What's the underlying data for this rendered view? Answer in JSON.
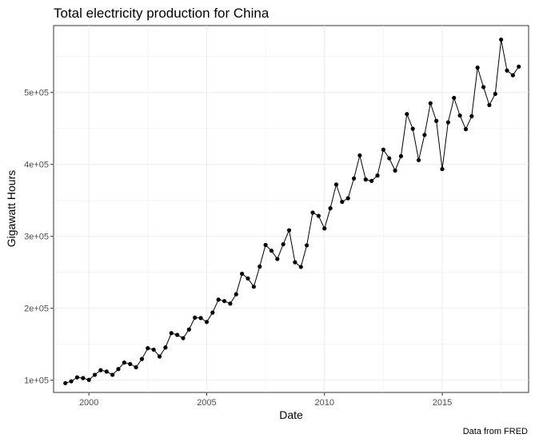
{
  "chart_data": {
    "type": "line",
    "title": "Total electricity production for China",
    "xlabel": "Date",
    "ylabel": "Gigawatt Hours",
    "caption": "Data from FRED",
    "x_ticks": [
      "2000",
      "2005",
      "2010",
      "2015"
    ],
    "y_ticks": [
      "1e+05",
      "2e+05",
      "3e+05",
      "4e+05",
      "5e+05"
    ],
    "xlim": [
      "1998-07",
      "2018-09"
    ],
    "ylim": [
      83000,
      593000
    ],
    "grid": true,
    "line_color": "#000000",
    "series": [
      {
        "x": [
          "1999-01",
          "1999-04",
          "1999-07",
          "1999-10",
          "2000-01",
          "2000-04",
          "2000-07",
          "2000-10",
          "2001-01",
          "2001-04",
          "2001-07",
          "2001-10",
          "2002-01",
          "2002-04",
          "2002-07",
          "2002-10",
          "2003-01",
          "2003-04",
          "2003-07",
          "2003-10",
          "2004-01",
          "2004-04",
          "2004-07",
          "2004-10",
          "2005-01",
          "2005-04",
          "2005-07",
          "2005-10",
          "2006-01",
          "2006-04",
          "2006-07",
          "2006-10",
          "2007-01",
          "2007-04",
          "2007-07",
          "2007-10",
          "2008-01",
          "2008-04",
          "2008-07",
          "2008-10",
          "2009-01",
          "2009-04",
          "2009-07",
          "2009-10",
          "2010-01",
          "2010-04",
          "2010-07",
          "2010-10",
          "2011-01",
          "2011-04",
          "2011-07",
          "2011-10",
          "2012-01",
          "2012-04",
          "2012-07",
          "2012-10",
          "2013-01",
          "2013-04",
          "2013-07",
          "2013-10",
          "2014-01",
          "2014-04",
          "2014-07",
          "2014-10",
          "2015-01",
          "2015-04",
          "2015-07",
          "2015-10",
          "2016-01",
          "2016-04",
          "2016-07",
          "2016-10",
          "2017-01",
          "2017-04",
          "2017-07",
          "2017-10",
          "2018-01",
          "2018-04"
        ],
        "values": [
          96000,
          98500,
          104000,
          103000,
          100500,
          107500,
          114000,
          112000,
          107500,
          115500,
          124500,
          122500,
          118000,
          129500,
          144500,
          142500,
          133000,
          145500,
          165500,
          163000,
          158500,
          170500,
          187000,
          186500,
          181000,
          194000,
          212000,
          210000,
          206500,
          219500,
          248000,
          241500,
          230000,
          258000,
          288000,
          280000,
          268500,
          289000,
          308500,
          264000,
          257500,
          287500,
          333000,
          328500,
          311000,
          339000,
          372000,
          348000,
          353000,
          380500,
          412500,
          379000,
          377000,
          384500,
          420500,
          408500,
          391500,
          411500,
          470000,
          449500,
          406000,
          441000,
          485000,
          460500,
          393500,
          458500,
          492500,
          468000,
          449000,
          467000,
          534500,
          507500,
          482500,
          498000,
          573500,
          530500,
          524000,
          536000
        ]
      }
    ]
  }
}
